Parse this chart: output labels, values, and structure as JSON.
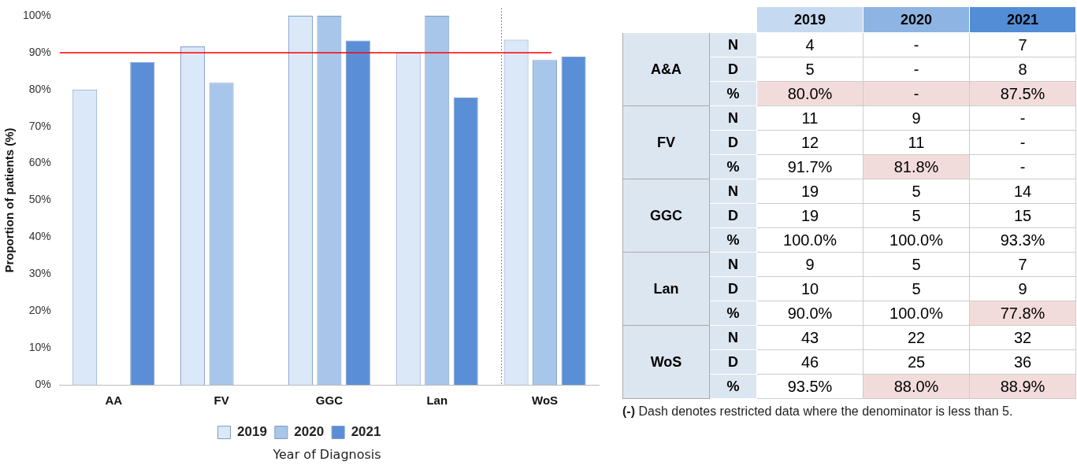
{
  "chart_data": [
    {
      "type": "bar",
      "ylabel": "Proportion of patients (%)",
      "xlabel": "Year of Diagnosis",
      "categories": [
        "AA",
        "FV",
        "GGC",
        "Lan",
        "WoS"
      ],
      "series": [
        {
          "name": "2019",
          "color": "#dbe8f8",
          "values": [
            80.0,
            91.7,
            100.0,
            90.0,
            93.5
          ]
        },
        {
          "name": "2020",
          "color": "#a8c5ea",
          "values": [
            null,
            81.8,
            100.0,
            100.0,
            88.0
          ]
        },
        {
          "name": "2021",
          "color": "#5a8fd7",
          "values": [
            87.5,
            null,
            93.3,
            77.8,
            88.9
          ]
        }
      ],
      "ylim": [
        0,
        100
      ],
      "yticks": [
        {
          "value": 0,
          "label": "0%"
        },
        {
          "value": 10,
          "label": "10%"
        },
        {
          "value": 20,
          "label": "20%"
        },
        {
          "value": 30,
          "label": "30%"
        },
        {
          "value": 40,
          "label": "40%"
        },
        {
          "value": 50,
          "label": "50%"
        },
        {
          "value": 60,
          "label": "60%"
        },
        {
          "value": 70,
          "label": "70%"
        },
        {
          "value": 80,
          "label": "80%"
        },
        {
          "value": 90,
          "label": "90%"
        },
        {
          "value": 100,
          "label": "100%"
        }
      ],
      "ref_lines": [
        {
          "axis": "y",
          "value": 90,
          "label": null,
          "color": "#ff0000"
        }
      ],
      "grid": false,
      "legend": "bottom"
    },
    {
      "type": "heatmap",
      "categories": [
        "2019",
        "2020",
        "2021"
      ],
      "y_categories": [
        "N",
        "D",
        "%",
        "N",
        "D",
        "%",
        "N",
        "D",
        "%",
        "N",
        "D",
        "%",
        "N",
        "D",
        "%"
      ],
      "y2_categories": [
        null,
        "A&A",
        null,
        null,
        "FV",
        null,
        null,
        "GGC",
        null,
        null,
        "Lan",
        null,
        null,
        "WoS",
        null
      ],
      "cells": [
        [
          4,
          null,
          7
        ],
        [
          5,
          null,
          8
        ],
        [
          80.0,
          null,
          87.5
        ],
        [
          11,
          9,
          null
        ],
        [
          12,
          11,
          null
        ],
        [
          91.7,
          81.8,
          null
        ],
        [
          19,
          5,
          14
        ],
        [
          19,
          5,
          15
        ],
        [
          100.0,
          100.0,
          93.3
        ],
        [
          9,
          5,
          7
        ],
        [
          10,
          5,
          9
        ],
        [
          90.0,
          100.0,
          77.8
        ],
        [
          43,
          22,
          32
        ],
        [
          46,
          25,
          36
        ],
        [
          93.5,
          88.0,
          88.9
        ]
      ],
      "cell_labels": [
        [
          "4",
          "-",
          "7"
        ],
        [
          "5",
          "-",
          "8"
        ],
        [
          "80.0%",
          "-",
          "87.5%"
        ],
        [
          "11",
          "9",
          "-"
        ],
        [
          "12",
          "11",
          "-"
        ],
        [
          "91.7%",
          "81.8%",
          "-"
        ],
        [
          "19",
          "5",
          "14"
        ],
        [
          "19",
          "5",
          "15"
        ],
        [
          "100.0%",
          "100.0%",
          "93.3%"
        ],
        [
          "9",
          "5",
          "7"
        ],
        [
          "10",
          "5",
          "9"
        ],
        [
          "90.0%",
          "100.0%",
          "77.8%"
        ],
        [
          "43",
          "22",
          "32"
        ],
        [
          "46",
          "25",
          "36"
        ],
        [
          "93.5%",
          "88.0%",
          "88.9%"
        ]
      ],
      "colors": [
        [
          null,
          null,
          null
        ],
        [
          null,
          null,
          null
        ],
        [
          "#f2dcdb",
          "#f2dcdb",
          "#f2dcdb"
        ],
        [
          null,
          null,
          null
        ],
        [
          null,
          null,
          null
        ],
        [
          null,
          "#f2dcdb",
          null
        ],
        [
          null,
          null,
          null
        ],
        [
          null,
          null,
          null
        ],
        [
          null,
          null,
          null
        ],
        [
          null,
          null,
          null
        ],
        [
          null,
          null,
          null
        ],
        [
          null,
          null,
          "#f2dcdb"
        ],
        [
          null,
          null,
          null
        ],
        [
          null,
          null,
          null
        ],
        [
          null,
          "#f2dcdb",
          "#f2dcdb"
        ]
      ],
      "annotations": [
        "(-) Dash denotes restricted data where the denominator is less than 5."
      ]
    }
  ]
}
